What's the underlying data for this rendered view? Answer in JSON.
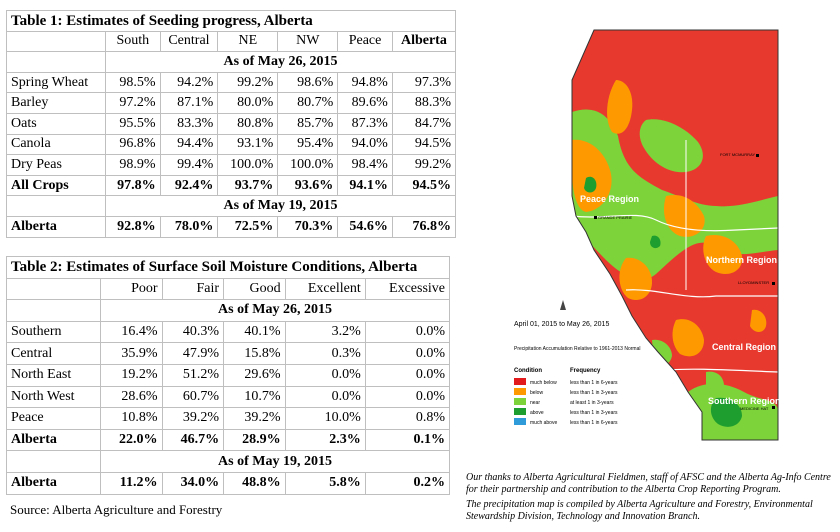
{
  "table1": {
    "title": "Table 1: Estimates of Seeding progress, Alberta",
    "columns": [
      "",
      "South",
      "Central",
      "NE",
      "NW",
      "Peace",
      "Alberta"
    ],
    "as_of_current": "As of May 26, 2015",
    "rows": [
      {
        "label": "Spring Wheat",
        "values": [
          "98.5%",
          "94.2%",
          "99.2%",
          "98.6%",
          "94.8%",
          "97.3%"
        ]
      },
      {
        "label": "Barley",
        "values": [
          "97.2%",
          "87.1%",
          "80.0%",
          "80.7%",
          "89.6%",
          "88.3%"
        ]
      },
      {
        "label": "Oats",
        "values": [
          "95.5%",
          "83.3%",
          "80.8%",
          "85.7%",
          "87.3%",
          "84.7%"
        ]
      },
      {
        "label": "Canola",
        "values": [
          "96.8%",
          "94.4%",
          "93.1%",
          "95.4%",
          "94.0%",
          "94.5%"
        ]
      },
      {
        "label": "Dry Peas",
        "values": [
          "98.9%",
          "99.4%",
          "100.0%",
          "100.0%",
          "98.4%",
          "99.2%"
        ]
      }
    ],
    "all_crops": {
      "label": "All Crops",
      "values": [
        "97.8%",
        "92.4%",
        "93.7%",
        "93.6%",
        "94.1%",
        "94.5%"
      ]
    },
    "as_of_previous": "As of May 19, 2015",
    "previous": {
      "label": "Alberta",
      "values": [
        "92.8%",
        "78.0%",
        "72.5%",
        "70.3%",
        "54.6%",
        "76.8%"
      ]
    }
  },
  "table2": {
    "title": "Table 2: Estimates of Surface Soil Moisture Conditions, Alberta",
    "columns": [
      "",
      "Poor",
      "Fair",
      "Good",
      "Excellent",
      "Excessive"
    ],
    "as_of_current": "As of May 26, 2015",
    "rows": [
      {
        "label": "Southern",
        "values": [
          "16.4%",
          "40.3%",
          "40.1%",
          "3.2%",
          "0.0%"
        ]
      },
      {
        "label": "Central",
        "values": [
          "35.9%",
          "47.9%",
          "15.8%",
          "0.3%",
          "0.0%"
        ]
      },
      {
        "label": "North East",
        "values": [
          "19.2%",
          "51.2%",
          "29.6%",
          "0.0%",
          "0.0%"
        ]
      },
      {
        "label": "North West",
        "values": [
          "28.6%",
          "60.7%",
          "10.7%",
          "0.0%",
          "0.0%"
        ]
      },
      {
        "label": "Peace",
        "values": [
          "10.8%",
          "39.2%",
          "39.2%",
          "10.0%",
          "0.8%"
        ]
      }
    ],
    "total": {
      "label": "Alberta",
      "values": [
        "22.0%",
        "46.7%",
        "28.9%",
        "2.3%",
        "0.1%"
      ]
    },
    "as_of_previous": "As of May 19, 2015",
    "previous": {
      "label": "Alberta",
      "values": [
        "11.2%",
        "34.0%",
        "48.8%",
        "5.8%",
        "0.2%"
      ]
    }
  },
  "source": "Source: Alberta Agriculture and Forestry",
  "map": {
    "period": "April 01, 2015 to May 26, 2015",
    "subtitle": "Precipitation Accumulation Relative to 1961-2013 Normal",
    "legend_condition_header": "Condition",
    "legend_frequency_header": "Frequency",
    "legend": [
      {
        "condition": "much below",
        "frequency": "less than 1 in 6-years",
        "color": "#e31a1c"
      },
      {
        "condition": "below",
        "frequency": "less than 1 in 3-years",
        "color": "#ff9900"
      },
      {
        "condition": "near",
        "frequency": "at least 1 in 3-years",
        "color": "#7cd33a"
      },
      {
        "condition": "above",
        "frequency": "less than 1 in 3-years",
        "color": "#1e9e2e"
      },
      {
        "condition": "much above",
        "frequency": "less than 1 in 6-years",
        "color": "#2f9bd8"
      }
    ],
    "region_labels": [
      "Peace Region",
      "Northern Region",
      "Central Region",
      "Southern Region"
    ],
    "town_labels": [
      "FORT MCMURRAY",
      "GRANDE PRAIRIE",
      "LLOYDMINSTER",
      "MEDICINE HAT"
    ]
  },
  "credits": [
    "Our thanks to Alberta Agricultural Fieldmen, staff of AFSC and the Alberta Ag-Info Centre for their partnership and contribution to the Alberta Crop Reporting Program.",
    "The precipitation map is compiled by Alberta Agriculture and Forestry, Environmental Stewardship Division, Technology and Innovation Branch."
  ]
}
